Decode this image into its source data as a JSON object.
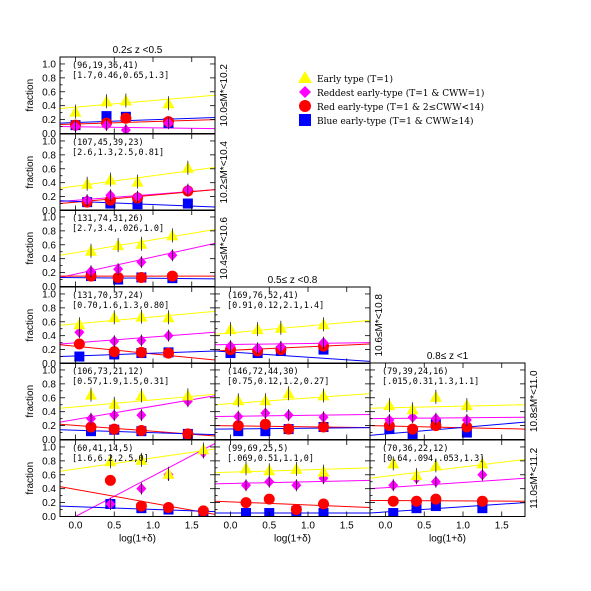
{
  "chart_data": {
    "type": "scatter",
    "legend": {
      "placement": "top-right",
      "entries": [
        {
          "name": "Early type (T=1)",
          "color": "#ffff00",
          "marker": "triangle"
        },
        {
          "name": "Reddest early-type (T=1 & CWW=1)",
          "color": "#ff00ff",
          "marker": "diamond"
        },
        {
          "name": "Red early-type  (T=1 & 2≤CWW<14)",
          "color": "#ff0000",
          "marker": "circle"
        },
        {
          "name": "Blue early-type (T=1 & CWW≥14)",
          "color": "#0000ff",
          "marker": "square"
        }
      ]
    },
    "xlabel": "log(1+δ)",
    "ylabel": "fraction",
    "ylim": [
      0,
      1.1
    ],
    "column_titles": [
      "0.2≤ z <0.5",
      "0.5≤ z <0.8",
      "0.8≤ z <1"
    ],
    "row_labels": [
      "10.0≤M*<10.2",
      "10.2≤M*<10.4",
      "10.4≤M*<10.6",
      "10.6≤M*<10.8",
      "10.8≤M*<11.0",
      "11.0≤M*<11.2"
    ],
    "panels": [
      {
        "col": 0,
        "row": 0,
        "counts": "(96,19,36,41)",
        "params": "[1.7,0.46,0.65,1.3]",
        "xlim": [
          -0.2,
          1.8
        ],
        "x": [
          0.0,
          0.4,
          0.65,
          1.2
        ],
        "early": [
          0.3,
          0.45,
          0.46,
          0.42
        ],
        "reddest": [
          0.1,
          0.12,
          0.05,
          0.15
        ],
        "red": [
          0.12,
          0.15,
          0.22,
          0.17
        ],
        "blue": [
          0.12,
          0.25,
          0.24,
          0.15
        ],
        "fits": {
          "early": [
            [
              -0.2,
              0.36
            ],
            [
              1.8,
              0.55
            ]
          ],
          "reddest": [
            [
              -0.2,
              0.1
            ],
            [
              1.8,
              0.07
            ]
          ],
          "red": [
            [
              -0.2,
              0.13
            ],
            [
              1.8,
              0.2
            ]
          ],
          "blue": [
            [
              -0.2,
              0.15
            ],
            [
              1.8,
              0.23
            ]
          ]
        }
      },
      {
        "col": 0,
        "row": 1,
        "counts": "(107,45,39,23)",
        "params": "[2.6,1.3,2.5,0.81]",
        "xlim": [
          -0.2,
          1.8
        ],
        "x": [
          0.15,
          0.45,
          0.8,
          1.45
        ],
        "early": [
          0.37,
          0.43,
          0.4,
          0.6
        ],
        "reddest": [
          0.15,
          0.22,
          0.2,
          0.3
        ],
        "red": [
          0.12,
          0.15,
          0.18,
          0.28
        ],
        "blue": [
          0.12,
          0.1,
          0.09,
          0.1
        ],
        "fits": {
          "early": [
            [
              -0.2,
              0.32
            ],
            [
              1.8,
              0.62
            ]
          ],
          "reddest": [
            [
              -0.2,
              0.13
            ],
            [
              1.8,
              0.3
            ]
          ],
          "red": [
            [
              -0.2,
              0.1
            ],
            [
              1.8,
              0.3
            ]
          ],
          "blue": [
            [
              -0.2,
              0.14
            ],
            [
              1.8,
              0.05
            ]
          ]
        }
      },
      {
        "col": 0,
        "row": 2,
        "counts": "(131,74,31,26)",
        "params": "[2.7,3.4,.026,1.0]",
        "xlim": [
          -0.2,
          1.8
        ],
        "x": [
          0.2,
          0.55,
          0.85,
          1.25
        ],
        "early": [
          0.5,
          0.58,
          0.6,
          0.72
        ],
        "reddest": [
          0.22,
          0.25,
          0.35,
          0.45
        ],
        "red": [
          0.15,
          0.13,
          0.13,
          0.15
        ],
        "blue": [
          0.15,
          0.1,
          0.13,
          0.12
        ],
        "fits": {
          "early": [
            [
              -0.2,
              0.45
            ],
            [
              1.8,
              0.82
            ]
          ],
          "reddest": [
            [
              -0.2,
              0.13
            ],
            [
              1.8,
              0.62
            ]
          ],
          "red": [
            [
              -0.2,
              0.15
            ],
            [
              1.8,
              0.15
            ]
          ],
          "blue": [
            [
              -0.2,
              0.13
            ],
            [
              1.8,
              0.11
            ]
          ]
        }
      },
      {
        "col": 0,
        "row": 3,
        "counts": "(131,70,37,24)",
        "params": "[0.70,1.6,1.3,0.80]",
        "xlim": [
          -0.2,
          1.8
        ],
        "x": [
          0.05,
          0.5,
          0.85,
          1.2
        ],
        "early": [
          0.55,
          0.65,
          0.66,
          0.65
        ],
        "reddest": [
          0.45,
          0.32,
          0.33,
          0.4
        ],
        "red": [
          0.28,
          0.17,
          0.16,
          0.15
        ],
        "blue": [
          0.1,
          0.13,
          0.15,
          0.16
        ],
        "fits": {
          "early": [
            [
              -0.2,
              0.55
            ],
            [
              1.8,
              0.75
            ]
          ],
          "reddest": [
            [
              -0.2,
              0.28
            ],
            [
              1.8,
              0.45
            ]
          ],
          "red": [
            [
              -0.2,
              0.27
            ],
            [
              1.8,
              0.05
            ]
          ],
          "blue": [
            [
              -0.2,
              0.1
            ],
            [
              1.8,
              0.18
            ]
          ]
        }
      },
      {
        "col": 0,
        "row": 4,
        "counts": "(106,73,21,12)",
        "params": "[0.57,1.9,1.5,0.31]",
        "xlim": [
          -0.2,
          1.8
        ],
        "x": [
          0.2,
          0.5,
          0.85,
          1.45
        ],
        "early": [
          0.63,
          0.5,
          0.62,
          0.62
        ],
        "reddest": [
          0.3,
          0.35,
          0.35,
          0.55
        ],
        "red": [
          0.18,
          0.15,
          0.13,
          0.08
        ],
        "blue": [
          0.12,
          0.14,
          0.12,
          0.08
        ],
        "fits": {
          "early": [
            [
              -0.2,
              0.45
            ],
            [
              1.8,
              0.65
            ]
          ],
          "reddest": [
            [
              -0.2,
              0.25
            ],
            [
              1.8,
              0.63
            ]
          ],
          "red": [
            [
              -0.2,
              0.22
            ],
            [
              1.8,
              0.05
            ]
          ],
          "blue": [
            [
              -0.2,
              0.14
            ],
            [
              1.8,
              0.07
            ]
          ]
        }
      },
      {
        "col": 0,
        "row": 5,
        "counts": "(60,41,14,5)",
        "params": "[1.6,6.2,2.5,0]",
        "xlim": [
          -0.2,
          1.8
        ],
        "x": [
          0.45,
          0.85,
          1.2,
          1.65
        ],
        "early": [
          0.78,
          0.8,
          0.6,
          0.95
        ],
        "reddest": [
          0.18,
          0.4,
          0.6,
          0.92
        ],
        "red": [
          0.52,
          0.15,
          0.13,
          0.08
        ],
        "blue": [
          0.18,
          0.12,
          0.1,
          0.05
        ],
        "fits": {
          "early": [
            [
              -0.2,
              0.65
            ],
            [
              1.8,
              0.97
            ]
          ],
          "reddest": [
            [
              0.0,
              0.0
            ],
            [
              1.8,
              1.05
            ]
          ],
          "red": [
            [
              -0.2,
              0.43
            ],
            [
              1.8,
              0.03
            ]
          ],
          "blue": [
            [
              -0.2,
              0.15
            ],
            [
              1.8,
              0.07
            ]
          ]
        }
      },
      {
        "col": 1,
        "row": 3,
        "counts": "(169,76,52,41)",
        "params": "[0.91,0.12,2.1,1.4]",
        "xlim": [
          -0.2,
          1.8
        ],
        "x": [
          0.0,
          0.35,
          0.65,
          1.2
        ],
        "early": [
          0.48,
          0.48,
          0.5,
          0.55
        ],
        "reddest": [
          0.25,
          0.22,
          0.24,
          0.3
        ],
        "red": [
          0.2,
          0.18,
          0.2,
          0.25
        ],
        "blue": [
          0.15,
          0.15,
          0.18,
          0.2
        ],
        "fits": {
          "early": [
            [
              -0.2,
              0.42
            ],
            [
              1.8,
              0.62
            ]
          ],
          "reddest": [
            [
              -0.2,
              0.27
            ],
            [
              1.8,
              0.3
            ]
          ],
          "red": [
            [
              -0.2,
              0.18
            ],
            [
              1.8,
              0.28
            ]
          ],
          "blue": [
            [
              -0.2,
              0.18
            ],
            [
              1.8,
              0.03
            ]
          ]
        }
      },
      {
        "col": 1,
        "row": 4,
        "counts": "(146,72,44,30)",
        "params": "[0.75,0.12,1.2,0.27]",
        "xlim": [
          -0.2,
          1.8
        ],
        "x": [
          0.1,
          0.45,
          0.75,
          1.2
        ],
        "early": [
          0.55,
          0.55,
          0.65,
          0.62
        ],
        "reddest": [
          0.33,
          0.38,
          0.35,
          0.32
        ],
        "red": [
          0.2,
          0.22,
          0.15,
          0.18
        ],
        "blue": [
          0.12,
          0.12,
          0.15,
          0.18
        ],
        "fits": {
          "early": [
            [
              -0.2,
              0.5
            ],
            [
              1.8,
              0.66
            ]
          ],
          "reddest": [
            [
              -0.2,
              0.33
            ],
            [
              1.8,
              0.36
            ]
          ],
          "red": [
            [
              -0.2,
              0.2
            ],
            [
              1.8,
              0.17
            ]
          ],
          "blue": [
            [
              -0.2,
              0.15
            ],
            [
              1.8,
              0.17
            ]
          ]
        }
      },
      {
        "col": 1,
        "row": 5,
        "counts": "(99,69,25,5)",
        "params": "[.069,0.51,1.1,0]",
        "xlim": [
          -0.2,
          1.8
        ],
        "x": [
          0.2,
          0.5,
          0.85,
          1.2
        ],
        "early": [
          0.68,
          0.65,
          0.67,
          0.63
        ],
        "reddest": [
          0.45,
          0.5,
          0.45,
          0.55
        ],
        "red": [
          0.2,
          0.25,
          0.1,
          0.18
        ],
        "blue": [
          0.05,
          0.05,
          0.08,
          0.05
        ],
        "fits": {
          "early": [
            [
              -0.2,
              0.63
            ],
            [
              1.8,
              0.7
            ]
          ],
          "reddest": [
            [
              -0.2,
              0.47
            ],
            [
              1.8,
              0.52
            ]
          ],
          "red": [
            [
              -0.2,
              0.22
            ],
            [
              1.8,
              0.13
            ]
          ],
          "blue": [
            [
              -0.2,
              0.05
            ],
            [
              1.8,
              0.05
            ]
          ]
        }
      },
      {
        "col": 2,
        "row": 4,
        "counts": "(79,39,24,16)",
        "params": "[.015,0.31,1.3,1.1]",
        "xlim": [
          -0.2,
          1.8
        ],
        "x": [
          0.05,
          0.35,
          0.65,
          1.05
        ],
        "early": [
          0.48,
          0.42,
          0.6,
          0.48
        ],
        "reddest": [
          0.28,
          0.32,
          0.3,
          0.28
        ],
        "red": [
          0.2,
          0.15,
          0.2,
          0.18
        ],
        "blue": [
          0.15,
          0.08,
          0.22,
          0.1
        ],
        "fits": {
          "early": [
            [
              -0.2,
              0.45
            ],
            [
              1.8,
              0.5
            ]
          ],
          "reddest": [
            [
              -0.2,
              0.3
            ],
            [
              1.8,
              0.32
            ]
          ],
          "red": [
            [
              -0.2,
              0.2
            ],
            [
              1.8,
              0.15
            ]
          ],
          "blue": [
            [
              -0.2,
              0.06
            ],
            [
              1.8,
              0.25
            ]
          ]
        }
      },
      {
        "col": 2,
        "row": 5,
        "counts": "(70,36,22,12)",
        "params": "[0.64,.094,.053,1.3]",
        "xlim": [
          -0.2,
          1.8
        ],
        "x": [
          0.1,
          0.4,
          0.65,
          1.25
        ],
        "early": [
          0.75,
          0.58,
          0.72,
          0.75
        ],
        "reddest": [
          0.45,
          0.55,
          0.5,
          0.6
        ],
        "red": [
          0.22,
          0.22,
          0.25,
          0.22
        ],
        "blue": [
          0.05,
          0.12,
          0.15,
          0.12
        ],
        "fits": {
          "early": [
            [
              -0.2,
              0.55
            ],
            [
              1.8,
              0.82
            ]
          ],
          "reddest": [
            [
              -0.2,
              0.4
            ],
            [
              1.8,
              0.55
            ]
          ],
          "red": [
            [
              -0.2,
              0.23
            ],
            [
              1.8,
              0.22
            ]
          ],
          "blue": [
            [
              -0.2,
              0.05
            ],
            [
              1.8,
              0.2
            ]
          ]
        }
      }
    ],
    "xticks": [
      0.0,
      0.5,
      1.0,
      1.5
    ],
    "yticks": [
      0.0,
      0.2,
      0.4,
      0.6,
      0.8,
      1.0
    ]
  }
}
